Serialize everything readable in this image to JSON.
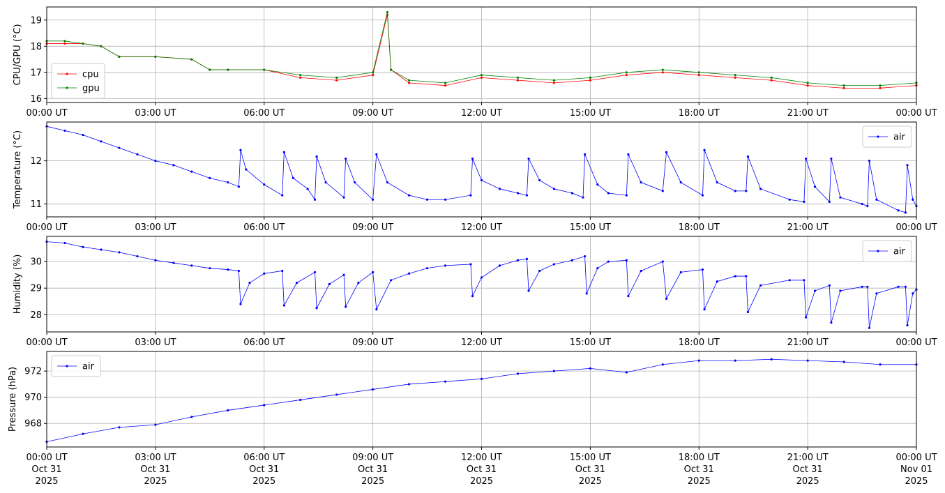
{
  "chart_data": [
    {
      "type": "line",
      "ylabel": "CPU/GPU (°C)",
      "ylim": [
        15.85,
        19.5
      ],
      "yticks": [
        16,
        17,
        18,
        19
      ],
      "xlim": [
        0,
        24
      ],
      "xticks": [
        0,
        3,
        6,
        9,
        12,
        15,
        18,
        21,
        24
      ],
      "xtick_labels": [
        "00:00 UT",
        "03:00 UT",
        "06:00 UT",
        "09:00 UT",
        "12:00 UT",
        "15:00 UT",
        "18:00 UT",
        "21:00 UT",
        "00:00 UT"
      ],
      "grid": true,
      "legend": "lower-left",
      "series": [
        {
          "name": "cpu",
          "color": "#ff0000",
          "points": [
            [
              0.0,
              18.1
            ],
            [
              0.5,
              18.1
            ],
            [
              1.0,
              18.1
            ],
            [
              1.5,
              18.0
            ],
            [
              2.0,
              17.6
            ],
            [
              3.0,
              17.6
            ],
            [
              4.0,
              17.5
            ],
            [
              4.5,
              17.1
            ],
            [
              5.0,
              17.1
            ],
            [
              6.0,
              17.1
            ],
            [
              7.0,
              16.8
            ],
            [
              8.0,
              16.7
            ],
            [
              9.0,
              16.9
            ],
            [
              9.4,
              19.2
            ],
            [
              9.5,
              17.1
            ],
            [
              10.0,
              16.6
            ],
            [
              11.0,
              16.5
            ],
            [
              12.0,
              16.8
            ],
            [
              13.0,
              16.7
            ],
            [
              14.0,
              16.6
            ],
            [
              15.0,
              16.7
            ],
            [
              16.0,
              16.9
            ],
            [
              17.0,
              17.0
            ],
            [
              18.0,
              16.9
            ],
            [
              19.0,
              16.8
            ],
            [
              20.0,
              16.7
            ],
            [
              21.0,
              16.5
            ],
            [
              22.0,
              16.4
            ],
            [
              23.0,
              16.4
            ],
            [
              24.0,
              16.5
            ]
          ]
        },
        {
          "name": "gpu",
          "color": "#008000",
          "points": [
            [
              0.0,
              18.2
            ],
            [
              0.5,
              18.2
            ],
            [
              1.0,
              18.1
            ],
            [
              1.5,
              18.0
            ],
            [
              2.0,
              17.6
            ],
            [
              3.0,
              17.6
            ],
            [
              4.0,
              17.5
            ],
            [
              4.5,
              17.1
            ],
            [
              5.0,
              17.1
            ],
            [
              6.0,
              17.1
            ],
            [
              7.0,
              16.9
            ],
            [
              8.0,
              16.8
            ],
            [
              9.0,
              17.0
            ],
            [
              9.4,
              19.3
            ],
            [
              9.5,
              17.1
            ],
            [
              10.0,
              16.7
            ],
            [
              11.0,
              16.6
            ],
            [
              12.0,
              16.9
            ],
            [
              13.0,
              16.8
            ],
            [
              14.0,
              16.7
            ],
            [
              15.0,
              16.8
            ],
            [
              16.0,
              17.0
            ],
            [
              17.0,
              17.1
            ],
            [
              18.0,
              17.0
            ],
            [
              19.0,
              16.9
            ],
            [
              20.0,
              16.8
            ],
            [
              21.0,
              16.6
            ],
            [
              22.0,
              16.5
            ],
            [
              23.0,
              16.5
            ],
            [
              24.0,
              16.6
            ]
          ]
        }
      ]
    },
    {
      "type": "line",
      "ylabel": "Temperature (°C)",
      "ylim": [
        10.7,
        12.9
      ],
      "yticks": [
        11,
        12
      ],
      "xlim": [
        0,
        24
      ],
      "xticks": [
        0,
        3,
        6,
        9,
        12,
        15,
        18,
        21,
        24
      ],
      "xtick_labels": [
        "00:00 UT",
        "03:00 UT",
        "06:00 UT",
        "09:00 UT",
        "12:00 UT",
        "15:00 UT",
        "18:00 UT",
        "21:00 UT",
        "00:00 UT"
      ],
      "grid": true,
      "legend": "upper-right",
      "series": [
        {
          "name": "air",
          "color": "#0000ff",
          "points": [
            [
              0.0,
              12.8
            ],
            [
              0.5,
              12.7
            ],
            [
              1.0,
              12.6
            ],
            [
              1.5,
              12.45
            ],
            [
              2.0,
              12.3
            ],
            [
              2.5,
              12.15
            ],
            [
              3.0,
              12.0
            ],
            [
              3.5,
              11.9
            ],
            [
              4.0,
              11.75
            ],
            [
              4.5,
              11.6
            ],
            [
              5.0,
              11.5
            ],
            [
              5.3,
              11.4
            ],
            [
              5.35,
              12.25
            ],
            [
              5.5,
              11.8
            ],
            [
              6.0,
              11.45
            ],
            [
              6.5,
              11.2
            ],
            [
              6.55,
              12.2
            ],
            [
              6.8,
              11.6
            ],
            [
              7.2,
              11.35
            ],
            [
              7.4,
              11.1
            ],
            [
              7.45,
              12.1
            ],
            [
              7.7,
              11.5
            ],
            [
              8.2,
              11.15
            ],
            [
              8.25,
              12.05
            ],
            [
              8.5,
              11.5
            ],
            [
              9.0,
              11.1
            ],
            [
              9.1,
              12.15
            ],
            [
              9.4,
              11.5
            ],
            [
              10.0,
              11.2
            ],
            [
              10.5,
              11.1
            ],
            [
              11.0,
              11.1
            ],
            [
              11.7,
              11.2
            ],
            [
              11.75,
              12.05
            ],
            [
              12.0,
              11.55
            ],
            [
              12.5,
              11.35
            ],
            [
              13.0,
              11.25
            ],
            [
              13.25,
              11.2
            ],
            [
              13.3,
              12.05
            ],
            [
              13.6,
              11.55
            ],
            [
              14.0,
              11.35
            ],
            [
              14.5,
              11.25
            ],
            [
              14.8,
              11.15
            ],
            [
              14.85,
              12.15
            ],
            [
              15.2,
              11.45
            ],
            [
              15.5,
              11.25
            ],
            [
              16.0,
              11.2
            ],
            [
              16.05,
              12.15
            ],
            [
              16.4,
              11.5
            ],
            [
              17.0,
              11.3
            ],
            [
              17.1,
              12.2
            ],
            [
              17.5,
              11.5
            ],
            [
              18.1,
              11.2
            ],
            [
              18.15,
              12.25
            ],
            [
              18.5,
              11.5
            ],
            [
              19.0,
              11.3
            ],
            [
              19.3,
              11.3
            ],
            [
              19.35,
              12.1
            ],
            [
              19.7,
              11.35
            ],
            [
              20.5,
              11.1
            ],
            [
              20.9,
              11.05
            ],
            [
              20.95,
              12.05
            ],
            [
              21.2,
              11.4
            ],
            [
              21.6,
              11.05
            ],
            [
              21.65,
              12.05
            ],
            [
              21.9,
              11.15
            ],
            [
              22.5,
              11.0
            ],
            [
              22.65,
              10.95
            ],
            [
              22.7,
              12.0
            ],
            [
              22.9,
              11.1
            ],
            [
              23.5,
              10.85
            ],
            [
              23.7,
              10.8
            ],
            [
              23.75,
              11.9
            ],
            [
              23.9,
              11.1
            ],
            [
              24.0,
              10.95
            ]
          ]
        }
      ]
    },
    {
      "type": "line",
      "ylabel": "Humidity (%)",
      "ylim": [
        27.35,
        30.95
      ],
      "yticks": [
        28,
        29,
        30
      ],
      "xlim": [
        0,
        24
      ],
      "xticks": [
        0,
        3,
        6,
        9,
        12,
        15,
        18,
        21,
        24
      ],
      "xtick_labels": [
        "00:00 UT",
        "03:00 UT",
        "06:00 UT",
        "09:00 UT",
        "12:00 UT",
        "15:00 UT",
        "18:00 UT",
        "21:00 UT",
        "00:00 UT"
      ],
      "grid": true,
      "legend": "upper-right",
      "series": [
        {
          "name": "air",
          "color": "#0000ff",
          "points": [
            [
              0.0,
              30.75
            ],
            [
              0.5,
              30.7
            ],
            [
              1.0,
              30.55
            ],
            [
              1.5,
              30.45
            ],
            [
              2.0,
              30.35
            ],
            [
              2.5,
              30.2
            ],
            [
              3.0,
              30.05
            ],
            [
              3.5,
              29.95
            ],
            [
              4.0,
              29.85
            ],
            [
              4.5,
              29.75
            ],
            [
              5.0,
              29.7
            ],
            [
              5.3,
              29.65
            ],
            [
              5.35,
              28.4
            ],
            [
              5.6,
              29.2
            ],
            [
              6.0,
              29.55
            ],
            [
              6.5,
              29.65
            ],
            [
              6.55,
              28.35
            ],
            [
              6.9,
              29.2
            ],
            [
              7.4,
              29.6
            ],
            [
              7.45,
              28.25
            ],
            [
              7.8,
              29.15
            ],
            [
              8.2,
              29.5
            ],
            [
              8.25,
              28.3
            ],
            [
              8.6,
              29.2
            ],
            [
              9.0,
              29.6
            ],
            [
              9.1,
              28.2
            ],
            [
              9.5,
              29.3
            ],
            [
              10.0,
              29.55
            ],
            [
              10.5,
              29.75
            ],
            [
              11.0,
              29.85
            ],
            [
              11.7,
              29.9
            ],
            [
              11.75,
              28.7
            ],
            [
              12.0,
              29.4
            ],
            [
              12.5,
              29.85
            ],
            [
              13.0,
              30.05
            ],
            [
              13.25,
              30.1
            ],
            [
              13.3,
              28.9
            ],
            [
              13.6,
              29.65
            ],
            [
              14.0,
              29.9
            ],
            [
              14.5,
              30.05
            ],
            [
              14.85,
              30.2
            ],
            [
              14.9,
              28.8
            ],
            [
              15.2,
              29.75
            ],
            [
              15.5,
              30.0
            ],
            [
              16.0,
              30.05
            ],
            [
              16.05,
              28.7
            ],
            [
              16.4,
              29.65
            ],
            [
              17.0,
              30.0
            ],
            [
              17.1,
              28.6
            ],
            [
              17.5,
              29.6
            ],
            [
              18.1,
              29.7
            ],
            [
              18.15,
              28.2
            ],
            [
              18.5,
              29.25
            ],
            [
              19.0,
              29.45
            ],
            [
              19.3,
              29.45
            ],
            [
              19.35,
              28.1
            ],
            [
              19.7,
              29.1
            ],
            [
              20.5,
              29.3
            ],
            [
              20.9,
              29.3
            ],
            [
              20.95,
              27.9
            ],
            [
              21.2,
              28.9
            ],
            [
              21.6,
              29.1
            ],
            [
              21.65,
              27.7
            ],
            [
              21.9,
              28.9
            ],
            [
              22.5,
              29.05
            ],
            [
              22.65,
              29.05
            ],
            [
              22.7,
              27.5
            ],
            [
              22.9,
              28.8
            ],
            [
              23.5,
              29.05
            ],
            [
              23.7,
              29.05
            ],
            [
              23.75,
              27.6
            ],
            [
              23.9,
              28.8
            ],
            [
              24.0,
              28.95
            ]
          ]
        }
      ]
    },
    {
      "type": "line",
      "ylabel": "Pressure (hPa)",
      "ylim": [
        966.2,
        973.5
      ],
      "yticks": [
        968,
        970,
        972
      ],
      "xlim": [
        0,
        24
      ],
      "xticks": [
        0,
        3,
        6,
        9,
        12,
        15,
        18,
        21,
        24
      ],
      "xtick_labels": [
        "00:00 UT",
        "03:00 UT",
        "06:00 UT",
        "09:00 UT",
        "12:00 UT",
        "15:00 UT",
        "18:00 UT",
        "21:00 UT",
        "00:00 UT"
      ],
      "xtick_date_labels": [
        [
          "Oct 31",
          "2025"
        ],
        [
          "Oct 31",
          "2025"
        ],
        [
          "Oct 31",
          "2025"
        ],
        [
          "Oct 31",
          "2025"
        ],
        [
          "Oct 31",
          "2025"
        ],
        [
          "Oct 31",
          "2025"
        ],
        [
          "Oct 31",
          "2025"
        ],
        [
          "Oct 31",
          "2025"
        ],
        [
          "Nov 01",
          "2025"
        ]
      ],
      "grid": true,
      "legend": "upper-left",
      "series": [
        {
          "name": "air",
          "color": "#0000ff",
          "points": [
            [
              0.0,
              966.6
            ],
            [
              1.0,
              967.2
            ],
            [
              2.0,
              967.7
            ],
            [
              3.0,
              967.9
            ],
            [
              4.0,
              968.5
            ],
            [
              5.0,
              969.0
            ],
            [
              6.0,
              969.4
            ],
            [
              7.0,
              969.8
            ],
            [
              8.0,
              970.2
            ],
            [
              9.0,
              970.6
            ],
            [
              10.0,
              971.0
            ],
            [
              11.0,
              971.2
            ],
            [
              12.0,
              971.4
            ],
            [
              13.0,
              971.8
            ],
            [
              14.0,
              972.0
            ],
            [
              15.0,
              972.2
            ],
            [
              16.0,
              971.9
            ],
            [
              17.0,
              972.5
            ],
            [
              18.0,
              972.8
            ],
            [
              19.0,
              972.8
            ],
            [
              20.0,
              972.9
            ],
            [
              21.0,
              972.8
            ],
            [
              22.0,
              972.7
            ],
            [
              23.0,
              972.5
            ],
            [
              24.0,
              972.5
            ]
          ]
        }
      ]
    }
  ]
}
